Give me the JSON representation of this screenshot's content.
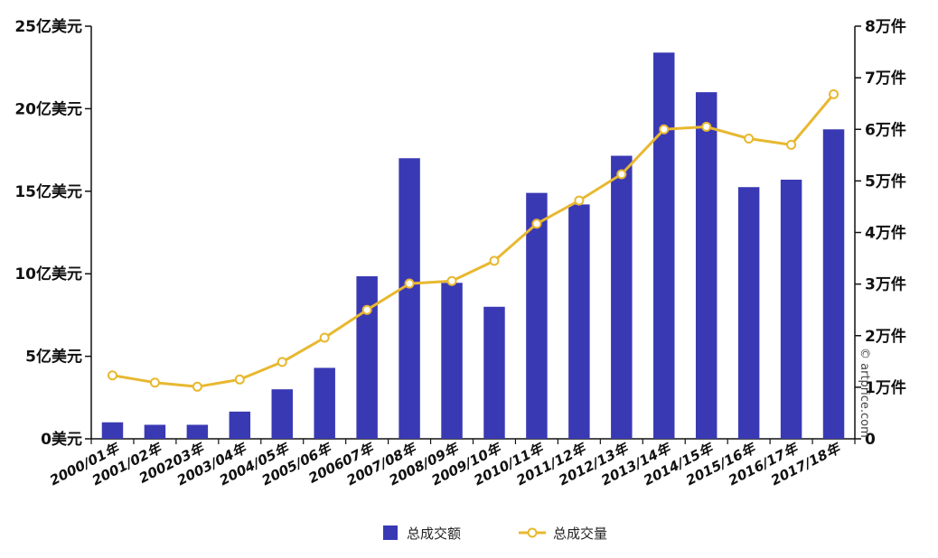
{
  "chart_data": {
    "type": "bar+line",
    "categories": [
      "2000/01年",
      "2001/02年",
      "200203年",
      "2003/04年",
      "2004/05年",
      "2005/06年",
      "200607年",
      "2007/08年",
      "2008/09年",
      "2009/10年",
      "2010/11年",
      "2011/12年",
      "2012/13年",
      "2013/14年",
      "2014/15年",
      "2015/16年",
      "2016/17年",
      "2017/18年"
    ],
    "series": [
      {
        "name": "总成交额",
        "type": "bar",
        "axis": "left",
        "color": "#3a39b4",
        "values": [
          1.0,
          0.85,
          0.85,
          1.65,
          3.0,
          4.3,
          9.85,
          17.0,
          9.45,
          8.0,
          14.9,
          14.2,
          17.15,
          23.4,
          21.0,
          15.25,
          15.7,
          18.75
        ]
      },
      {
        "name": "总成交量",
        "type": "line",
        "axis": "right",
        "color": "#e8b830",
        "values": [
          1.23,
          1.09,
          1.01,
          1.15,
          1.49,
          1.96,
          2.5,
          3.01,
          3.06,
          3.45,
          4.17,
          4.62,
          5.13,
          6.0,
          6.05,
          5.82,
          5.7,
          6.68
        ]
      }
    ],
    "left_axis": {
      "ylim": [
        0,
        25
      ],
      "ticks": [
        {
          "value": 0,
          "label": "0美元"
        },
        {
          "value": 5,
          "label": "5亿美元"
        },
        {
          "value": 10,
          "label": "10亿美元"
        },
        {
          "value": 15,
          "label": "15亿美元"
        },
        {
          "value": 20,
          "label": "20亿美元"
        },
        {
          "value": 25,
          "label": "25亿美元"
        }
      ]
    },
    "right_axis": {
      "ylim": [
        0,
        8
      ],
      "ticks": [
        {
          "value": 0,
          "label": "0"
        },
        {
          "value": 1,
          "label": "1万件"
        },
        {
          "value": 2,
          "label": "2万件"
        },
        {
          "value": 3,
          "label": "3万件"
        },
        {
          "value": 4,
          "label": "4万件"
        },
        {
          "value": 5,
          "label": "5万件"
        },
        {
          "value": 6,
          "label": "6万件"
        },
        {
          "value": 7,
          "label": "7万件"
        },
        {
          "value": 8,
          "label": "8万件"
        }
      ]
    },
    "legend": {
      "placement": "bottom",
      "items": [
        {
          "label": "总成交额",
          "marker": "bar"
        },
        {
          "label": "总成交量",
          "marker": "line"
        }
      ]
    },
    "grid": false,
    "credit": "© artprice.com"
  }
}
